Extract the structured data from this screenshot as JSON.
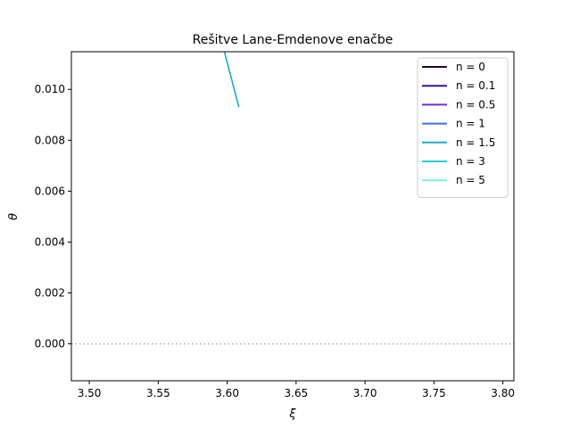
{
  "chart_data": {
    "type": "line",
    "title": "Rešitve Lane-Emdenove enačbe",
    "xlabel": "ξ",
    "ylabel": "θ",
    "xlim": [
      3.487,
      3.808
    ],
    "ylim": [
      -0.00145,
      0.01148
    ],
    "xticks": [
      "3.50",
      "3.55",
      "3.60",
      "3.65",
      "3.70",
      "3.75",
      "3.80"
    ],
    "xtick_values": [
      3.5,
      3.55,
      3.6,
      3.65,
      3.7,
      3.75,
      3.8
    ],
    "yticks": [
      "0.000",
      "0.002",
      "0.004",
      "0.006",
      "0.008",
      "0.010"
    ],
    "ytick_values": [
      0.0,
      0.002,
      0.004,
      0.006,
      0.008,
      0.01
    ],
    "grid": false,
    "legend_position": "top-right",
    "reference_line": {
      "y": 0.0,
      "style": "dotted",
      "color": "#aaaaaa"
    },
    "series": [
      {
        "name": "n = 0",
        "color": "#1a0a2e",
        "points": []
      },
      {
        "name": "n = 0.1",
        "color": "#3b0f8c",
        "points": []
      },
      {
        "name": "n = 0.5",
        "color": "#6a2fd6",
        "points": []
      },
      {
        "name": "n = 1",
        "color": "#3d6fe0",
        "points": []
      },
      {
        "name": "n = 1.5",
        "color": "#1ea8d0",
        "points": [
          [
            3.598,
            0.01148
          ],
          [
            3.6085,
            0.0093
          ]
        ]
      },
      {
        "name": "n = 3",
        "color": "#20d0d0",
        "points": []
      },
      {
        "name": "n = 5",
        "color": "#7ff2d8",
        "points": []
      }
    ]
  }
}
